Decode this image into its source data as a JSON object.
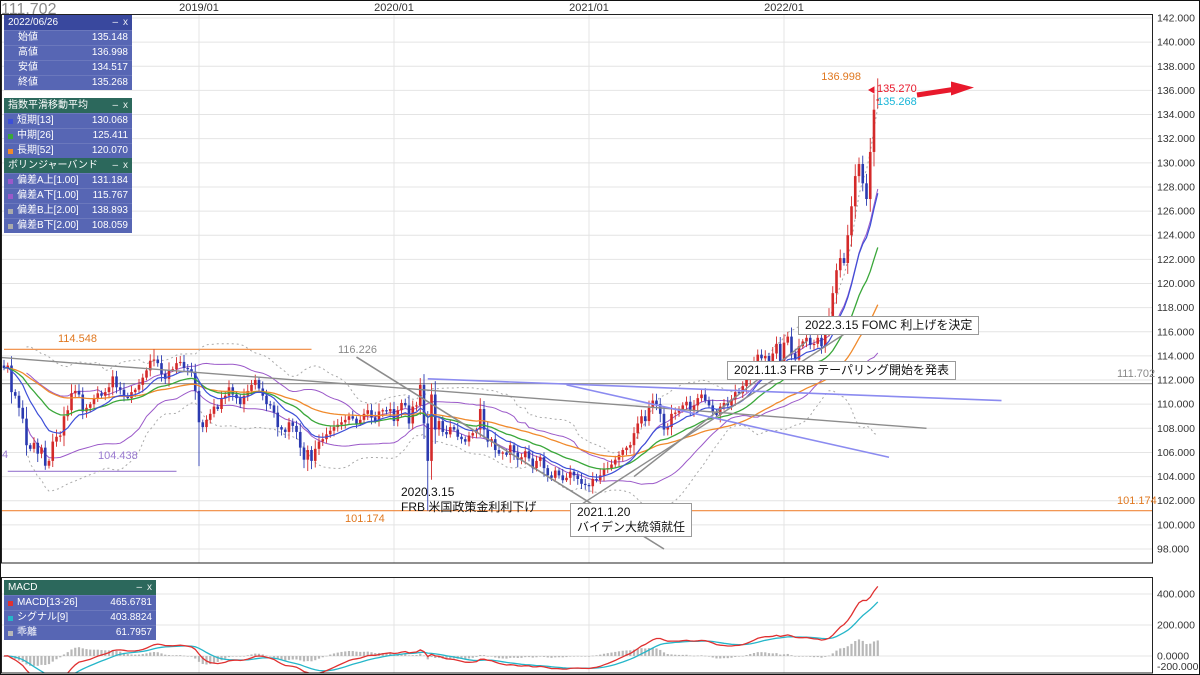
{
  "icons": {
    "minimize": "–",
    "close": "x",
    "price_pointer": "left-triangle",
    "trend_arrow": "right-arrow"
  },
  "colors": {
    "candle_up": "#d42a2a",
    "candle_down": "#2b3ab0",
    "ema_short": "#3d4fd8",
    "ema_mid": "#3aa73a",
    "ema_long": "#f08a2c",
    "boll_a": "#9b59c9",
    "boll_b": "#aaaaaa",
    "macd_line": "#e03030",
    "macd_signal": "#25b6c9",
    "macd_hist": "#b8b8b8",
    "arrow": "#e8192c",
    "grid": "#e4e4e4",
    "axis_text": "#333333"
  },
  "top_axis": {
    "labels": [
      "2019/01",
      "2020/01",
      "2021/01",
      "2022/01"
    ]
  },
  "axes": {
    "y_main": [
      "142.000",
      "140.000",
      "138.000",
      "136.000",
      "134.000",
      "132.000",
      "130.000",
      "128.000",
      "126.000",
      "124.000",
      "122.000",
      "120.000",
      "118.000",
      "116.000",
      "114.000",
      "112.000",
      "110.000",
      "108.000",
      "106.000",
      "104.000",
      "102.000",
      "100.000",
      "98.000"
    ],
    "y_macd": [
      "400.000",
      "200.000",
      "0.0000",
      "-200.000"
    ]
  },
  "panels": {
    "ohlc": {
      "title": "2022/06/26",
      "rows": [
        {
          "label": "始値",
          "value": "135.148"
        },
        {
          "label": "高値",
          "value": "136.998"
        },
        {
          "label": "安値",
          "value": "134.517"
        },
        {
          "label": "終値",
          "value": "135.268"
        }
      ]
    },
    "ema": {
      "title": "指数平滑移動平均",
      "rows": [
        {
          "label": "短期[13]",
          "value": "130.068",
          "color": "#3d4fd8"
        },
        {
          "label": "中期[26]",
          "value": "125.411",
          "color": "#3aa73a"
        },
        {
          "label": "長期[52]",
          "value": "120.070",
          "color": "#f08a2c"
        }
      ]
    },
    "bollinger": {
      "title": "ボリンジャーバンド",
      "rows": [
        {
          "label": "偏差A上[1.00]",
          "value": "131.184",
          "color": "#9b59c9"
        },
        {
          "label": "偏差A下[1.00]",
          "value": "115.767",
          "color": "#9b59c9"
        },
        {
          "label": "偏差B上[2.00]",
          "value": "138.893",
          "color": "#aaaaaa"
        },
        {
          "label": "偏差B下[2.00]",
          "value": "108.059",
          "color": "#aaaaaa"
        }
      ]
    },
    "macd": {
      "title": "MACD",
      "rows": [
        {
          "label": "MACD[13-26]",
          "value": "465.6781",
          "color": "#e03030"
        },
        {
          "label": "シグナル[9]",
          "value": "403.8824",
          "color": "#25b6c9"
        },
        {
          "label": "乖離",
          "value": "61.7957",
          "color": "#b8b8b8"
        }
      ]
    }
  },
  "line_labels": {
    "v114548": "114.548",
    "v116226": "116.226",
    "v104438": "104.438",
    "v101174_mid": "101.174",
    "v111702_axis": "111.702",
    "v101174_axis": "101.174",
    "edge_clip": "4"
  },
  "price_markers": {
    "high": "136.998",
    "bid": "135.270",
    "close": "135.268"
  },
  "annotations": {
    "fomc": {
      "text": "2022.3.15 FOMC 利上げを決定"
    },
    "taper": {
      "text": "2021.11.3 FRB テーパリング開始を発表"
    },
    "ratecut": {
      "line1": "2020.3.15",
      "line2": "FRB 米国政策金利利下げ"
    },
    "biden": {
      "line1": "2021.1.20",
      "line2": "バイデン大統領就任"
    }
  },
  "chart_data": {
    "type": "candlestick",
    "timeframe": "weekly",
    "x_start": "2018/01",
    "x_end": "2022/06/26",
    "year_gridweeks": [
      52,
      104,
      156,
      208
    ],
    "y_range": [
      98,
      142
    ],
    "y_step": 2,
    "weekly_closes": [
      113.0,
      113.2,
      111.0,
      110.7,
      109.7,
      108.8,
      106.6,
      106.3,
      106.8,
      105.9,
      106.4,
      104.9,
      105.3,
      106.9,
      107.3,
      107.4,
      109.0,
      109.5,
      110.9,
      111.1,
      110.8,
      109.4,
      109.7,
      110.0,
      110.5,
      110.9,
      110.7,
      111.0,
      111.4,
      112.3,
      111.4,
      111.2,
      110.7,
      110.5,
      111.0,
      111.2,
      111.6,
      112.2,
      112.8,
      113.6,
      113.7,
      113.4,
      112.5,
      112.1,
      112.8,
      112.9,
      113.4,
      113.5,
      113.0,
      112.9,
      112.7,
      111.1,
      108.5,
      108.1,
      108.7,
      109.2,
      109.8,
      109.6,
      110.5,
      110.7,
      111.4,
      110.8,
      110.5,
      110.0,
      110.7,
      111.1,
      111.6,
      112.0,
      111.3,
      110.7,
      110.0,
      109.9,
      109.3,
      108.1,
      107.9,
      107.7,
      108.5,
      108.2,
      107.7,
      106.4,
      105.4,
      106.2,
      105.3,
      106.3,
      106.9,
      107.1,
      107.5,
      107.8,
      108.1,
      108.3,
      108.5,
      108.7,
      109.0,
      108.8,
      108.4,
      108.7,
      109.2,
      109.5,
      108.9,
      108.6,
      109.4,
      109.5,
      109.4,
      109.6,
      108.6,
      109.5,
      110.1,
      109.9,
      108.4,
      109.8,
      109.9,
      111.6,
      108.4,
      105.3,
      110.8,
      107.9,
      108.6,
      107.7,
      107.5,
      108.1,
      107.9,
      107.3,
      107.1,
      106.9,
      107.4,
      107.6,
      107.9,
      109.6,
      107.9,
      106.9,
      107.1,
      106.2,
      105.9,
      106.0,
      105.8,
      106.6,
      106.0,
      105.4,
      105.6,
      106.1,
      105.5,
      104.7,
      105.3,
      105.6,
      104.7,
      104.1,
      103.9,
      104.5,
      104.1,
      103.7,
      103.9,
      104.4,
      104.1,
      103.8,
      103.4,
      103.3,
      103.2,
      103.8,
      103.7,
      104.1,
      104.6,
      104.7,
      105.0,
      105.4,
      105.8,
      106.2,
      106.4,
      106.6,
      107.6,
      108.4,
      109.0,
      108.6,
      109.7,
      110.3,
      110.0,
      109.2,
      107.9,
      108.1,
      109.2,
      109.3,
      109.5,
      109.9,
      110.2,
      109.5,
      109.9,
      110.5,
      110.8,
      110.3,
      109.9,
      109.4,
      109.1,
      109.8,
      110.1,
      109.9,
      110.4,
      111.0,
      110.9,
      111.5,
      112.2,
      112.9,
      113.5,
      114.1,
      113.8,
      114.0,
      113.5,
      114.2,
      115.0,
      113.4,
      115.1,
      115.6,
      114.2,
      113.7,
      114.8,
      115.2,
      115.5,
      114.9,
      115.0,
      115.5,
      114.8,
      116.3,
      117.3,
      119.2,
      121.1,
      122.1,
      121.7,
      124.0,
      126.4,
      128.9,
      129.9,
      128.3,
      127.0,
      130.9,
      134.4,
      135.268
    ],
    "last_candle": {
      "open": 135.148,
      "high": 136.998,
      "low": 134.517,
      "close": 135.268
    },
    "forced_extremes": [
      [
        11,
        "low",
        104.56
      ],
      [
        40,
        "high",
        114.548
      ],
      [
        52,
        "low",
        104.87
      ],
      [
        81,
        "low",
        104.46
      ],
      [
        113,
        "low",
        101.174
      ],
      [
        114,
        "high",
        111.71
      ],
      [
        157,
        "low",
        102.59
      ]
    ],
    "indicators": {
      "ema_periods": [
        13,
        26,
        52
      ],
      "bollinger_period": 26,
      "bollinger_devs": [
        1,
        2
      ],
      "macd": {
        "fast": 13,
        "slow": 26,
        "signal": 9,
        "display_scale": 100
      }
    },
    "hlines": [
      {
        "price": 114.548,
        "w1": 0,
        "w2": 82,
        "color": "#f0883c"
      },
      {
        "price": 111.702,
        "w1": -1,
        "w2": 307,
        "color": "#999999"
      },
      {
        "price": 104.438,
        "w1": 1,
        "w2": 46,
        "color": "#9a7ad0"
      },
      {
        "price": 101.174,
        "w1": -1,
        "w2": 307,
        "color": "#f0883c"
      }
    ],
    "trendlines": [
      {
        "w1": -2,
        "p1": 113.9,
        "w2": 246,
        "p2": 108.0,
        "color": "#8c8c8c",
        "width": 1.4
      },
      {
        "w1": 94,
        "p1": 113.9,
        "w2": 176,
        "p2": 98.0,
        "color": "#8c8c8c",
        "width": 1.6
      },
      {
        "w1": 152,
        "p1": 101.3,
        "w2": 229,
        "p2": 116.8,
        "color": "#8c8c8c",
        "width": 1.4
      },
      {
        "w1": 168,
        "p1": 104.0,
        "w2": 214,
        "p2": 115.2,
        "color": "#8c8c8c",
        "width": 1.4
      },
      {
        "w1": 113,
        "p1": 112.1,
        "w2": 266,
        "p2": 110.3,
        "color": "#8b8bf0",
        "width": 1.6
      },
      {
        "w1": 150,
        "p1": 111.6,
        "w2": 236,
        "p2": 105.6,
        "color": "#8b8bf0",
        "width": 1.6
      }
    ],
    "macd_axis_values": [
      400,
      200,
      0,
      -200
    ]
  }
}
